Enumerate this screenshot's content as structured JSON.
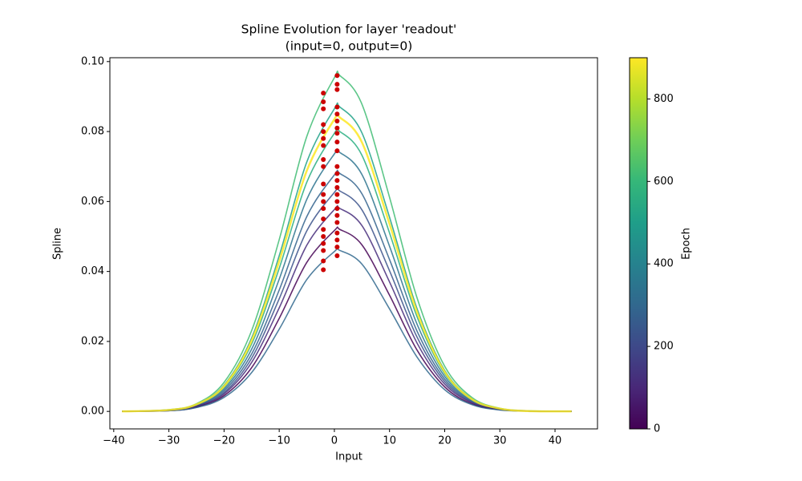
{
  "chart_data": {
    "type": "line",
    "title": "Spline Evolution for layer 'readout'",
    "subtitle": "(input=0, output=0)",
    "x_label": "Input",
    "y_label": "Spline",
    "x": [
      -38.5,
      -30,
      -25,
      -20,
      -15,
      -10,
      -5,
      0,
      1,
      5,
      10,
      15,
      20,
      25,
      30,
      35,
      43
    ],
    "series": [
      {
        "color": "#3fbc73",
        "values": [
          0,
          0.0005,
          0.0022,
          0.0083,
          0.0231,
          0.0491,
          0.0786,
          0.0954,
          0.096,
          0.0878,
          0.0612,
          0.0324,
          0.0129,
          0.0039,
          0.0009,
          0.0002,
          0
        ]
      },
      {
        "color": "#1fa187",
        "values": [
          0,
          0.0004,
          0.002,
          0.0075,
          0.021,
          0.0445,
          0.0713,
          0.0865,
          0.087,
          0.0796,
          0.0555,
          0.0293,
          0.0117,
          0.0035,
          0.0008,
          0.0001,
          0
        ]
      },
      {
        "color": "#28ae80",
        "values": [
          0,
          0.0004,
          0.0019,
          0.0069,
          0.0193,
          0.0409,
          0.0655,
          0.0795,
          0.08,
          0.0732,
          0.051,
          0.027,
          0.0108,
          0.0033,
          0.0008,
          0.0001,
          0
        ]
      },
      {
        "color": "#2c738e",
        "values": [
          0,
          0.0004,
          0.0017,
          0.0064,
          0.0178,
          0.0378,
          0.0606,
          0.0736,
          0.074,
          0.0677,
          0.0472,
          0.0249,
          0.01,
          0.003,
          0.0007,
          0.0001,
          0
        ]
      },
      {
        "color": "#33638d",
        "values": [
          0,
          0.0003,
          0.0016,
          0.0059,
          0.0164,
          0.0347,
          0.0557,
          0.0676,
          0.068,
          0.0622,
          0.0434,
          0.0229,
          0.0092,
          0.0028,
          0.0006,
          0.0001,
          0
        ]
      },
      {
        "color": "#3b528b",
        "values": [
          0,
          0.0003,
          0.0015,
          0.0054,
          0.0152,
          0.0322,
          0.0516,
          0.0626,
          0.063,
          0.0576,
          0.0402,
          0.0212,
          0.0085,
          0.0026,
          0.0006,
          0.0001,
          0
        ]
      },
      {
        "color": "#472d7b",
        "values": [
          0,
          0.0003,
          0.0014,
          0.005,
          0.014,
          0.0296,
          0.0475,
          0.0577,
          0.058,
          0.0531,
          0.037,
          0.0195,
          0.0078,
          0.0024,
          0.0005,
          0.0001,
          0
        ]
      },
      {
        "color": "#440154",
        "values": [
          0,
          0.0002,
          0.0012,
          0.0045,
          0.0125,
          0.0266,
          0.0426,
          0.0517,
          0.052,
          0.0476,
          0.0332,
          0.0175,
          0.007,
          0.0021,
          0.0005,
          0.0001,
          0
        ]
      },
      {
        "color": "#31688e",
        "values": [
          0,
          0.0002,
          0.0011,
          0.004,
          0.0111,
          0.0235,
          0.0377,
          0.0457,
          0.046,
          0.0421,
          0.0293,
          0.0155,
          0.0062,
          0.0019,
          0.0004,
          0.0001,
          0
        ]
      },
      {
        "color": "#fde725",
        "values": [
          0,
          0.0004,
          0.002,
          0.0072,
          0.0202,
          0.0429,
          0.0688,
          0.0835,
          0.084,
          0.0769,
          0.0536,
          0.0283,
          0.0113,
          0.0034,
          0.0008,
          0.0001,
          0
        ]
      }
    ],
    "points": {
      "color": "#cc0000",
      "x": [
        -2,
        -2,
        -2,
        -2,
        -2,
        -2,
        -2,
        -2,
        -2,
        -2,
        -2,
        -2,
        -2,
        -2,
        -2,
        -2,
        -2,
        -2,
        -2,
        -2,
        0.5,
        0.5,
        0.5,
        0.5,
        0.5,
        0.5,
        0.5,
        0.5,
        0.5,
        0.5,
        0.5,
        0.5,
        0.5,
        0.5,
        0.5,
        0.5,
        0.5,
        0.5,
        0.5,
        0.5,
        0.5,
        0.5,
        0.5
      ],
      "y": [
        0.091,
        0.0885,
        0.0865,
        0.082,
        0.08,
        0.078,
        0.076,
        0.072,
        0.07,
        0.065,
        0.062,
        0.06,
        0.058,
        0.055,
        0.052,
        0.05,
        0.048,
        0.046,
        0.043,
        0.0405,
        0.096,
        0.0935,
        0.092,
        0.087,
        0.085,
        0.083,
        0.081,
        0.0795,
        0.077,
        0.0745,
        0.07,
        0.068,
        0.066,
        0.064,
        0.062,
        0.06,
        0.058,
        0.056,
        0.054,
        0.051,
        0.049,
        0.047,
        0.0445
      ]
    },
    "xlim": [
      -40.7,
      47.7
    ],
    "xticks": [
      {
        "value": -40,
        "label": "−40"
      },
      {
        "value": -30,
        "label": "−30"
      },
      {
        "value": -20,
        "label": "−20"
      },
      {
        "value": -10,
        "label": "−10"
      },
      0,
      10,
      20,
      30,
      40
    ],
    "ylim": [
      -0.005,
      0.1011
    ],
    "yticks": [
      {
        "value": 0,
        "label": "0.00"
      },
      {
        "value": 0.02,
        "label": "0.02"
      },
      {
        "value": 0.04,
        "label": "0.04"
      },
      {
        "value": 0.06,
        "label": "0.06"
      },
      {
        "value": 0.08,
        "label": "0.08"
      },
      {
        "value": 0.1,
        "label": "0.10"
      }
    ],
    "colorbar": {
      "label": "Epoch",
      "lim": [
        0,
        900
      ],
      "ticks": [
        0,
        200,
        400,
        600,
        800
      ],
      "colormap": [
        "#440154",
        "#482878",
        "#3e4989",
        "#31688e",
        "#26828e",
        "#1f9e89",
        "#35b779",
        "#6ece58",
        "#b5de2b",
        "#fde725"
      ]
    }
  }
}
